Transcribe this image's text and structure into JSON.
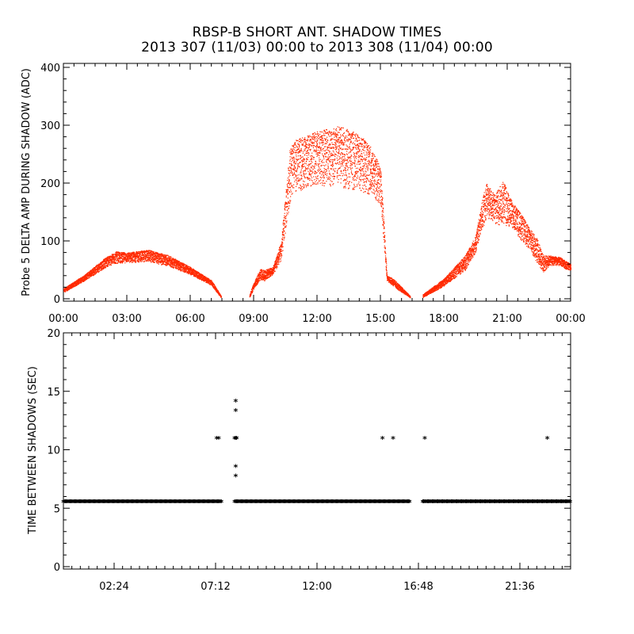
{
  "header": {
    "title": "RBSP-B SHORT ANT. SHADOW TIMES",
    "subtitle": "2013 307 (11/03) 00:00 to 2013 308 (11/04) 00:00"
  },
  "colors": {
    "series1": "#ff2a00",
    "series2": "#000000",
    "axes": "#000000"
  },
  "chart_data": [
    {
      "type": "scatter",
      "ylabel": "Probe 5 DELTA AMP DURING SHADOW (ADC)",
      "xlim": [
        0,
        24
      ],
      "ylim": [
        0,
        400
      ],
      "x_ticks": [
        "00:00",
        "03:00",
        "06:00",
        "09:00",
        "12:00",
        "15:00",
        "18:00",
        "21:00",
        "00:00"
      ],
      "y_ticks": [
        "0",
        "100",
        "200",
        "300",
        "400"
      ],
      "marker_color": "#ff2a00",
      "series": [
        {
          "bands": [
            {
              "x": [
                0.0,
                1.0,
                2.0,
                2.5,
                3.0,
                4.0,
                5.0,
                6.0,
                7.0,
                7.45
              ],
              "lo": [
                10,
                30,
                52,
                58,
                60,
                61,
                53,
                40,
                22,
                2
              ],
              "hi": [
                18,
                42,
                72,
                82,
                80,
                85,
                75,
                55,
                32,
                5
              ]
            },
            {
              "x": [
                8.8,
                9.0,
                9.3,
                9.5,
                9.9,
                10.3,
                10.7,
                11.0,
                12.0,
                13.0,
                14.0,
                14.5,
                15.0,
                15.3,
                15.6,
                16.0,
                16.4
              ],
              "lo": [
                2,
                15,
                30,
                28,
                40,
                60,
                150,
                170,
                180,
                175,
                170,
                165,
                150,
                30,
                20,
                10,
                2
              ],
              "hi": [
                8,
                28,
                52,
                50,
                55,
                100,
                260,
                275,
                290,
                300,
                285,
                265,
                230,
                40,
                35,
                20,
                5
              ]
            },
            {
              "x": [
                17.0,
                18.0,
                19.0,
                19.5,
                19.8,
                20.0,
                20.4,
                20.8,
                21.2,
                21.6,
                22.0,
                22.4,
                22.7,
                23.0,
                23.5,
                24.0
              ],
              "lo": [
                2,
                20,
                45,
                75,
                110,
                130,
                120,
                115,
                115,
                95,
                80,
                55,
                40,
                55,
                55,
                45
              ],
              "hi": [
                8,
                35,
                75,
                110,
                170,
                200,
                180,
                205,
                170,
                150,
                125,
                105,
                75,
                75,
                72,
                60
              ]
            }
          ]
        }
      ]
    },
    {
      "type": "scatter",
      "ylabel": "TIME BETWEEN SHADOWS (SEC)",
      "xlim": [
        0,
        24
      ],
      "ylim": [
        0,
        20
      ],
      "x_ticks": [
        "02:24",
        "07:12",
        "12:00",
        "16:48",
        "21:36"
      ],
      "y_ticks": [
        "0",
        "5",
        "10",
        "15",
        "20"
      ],
      "marker": "*",
      "marker_color": "#000000",
      "series": [
        {
          "baseline": 5.5,
          "baseline_segments": [
            [
              0.0,
              7.5
            ],
            [
              8.1,
              16.4
            ],
            [
              17.0,
              24.0
            ]
          ],
          "outliers": {
            "x": [
              7.25,
              7.35,
              8.1,
              8.2,
              8.15,
              8.15,
              8.15,
              8.15,
              8.15,
              15.1,
              15.6,
              17.1,
              22.9
            ],
            "y": [
              10.9,
              10.9,
              10.9,
              10.9,
              14.1,
              13.3,
              8.5,
              7.7,
              10.9,
              10.9,
              10.9,
              10.9,
              10.9
            ]
          }
        }
      ]
    }
  ]
}
